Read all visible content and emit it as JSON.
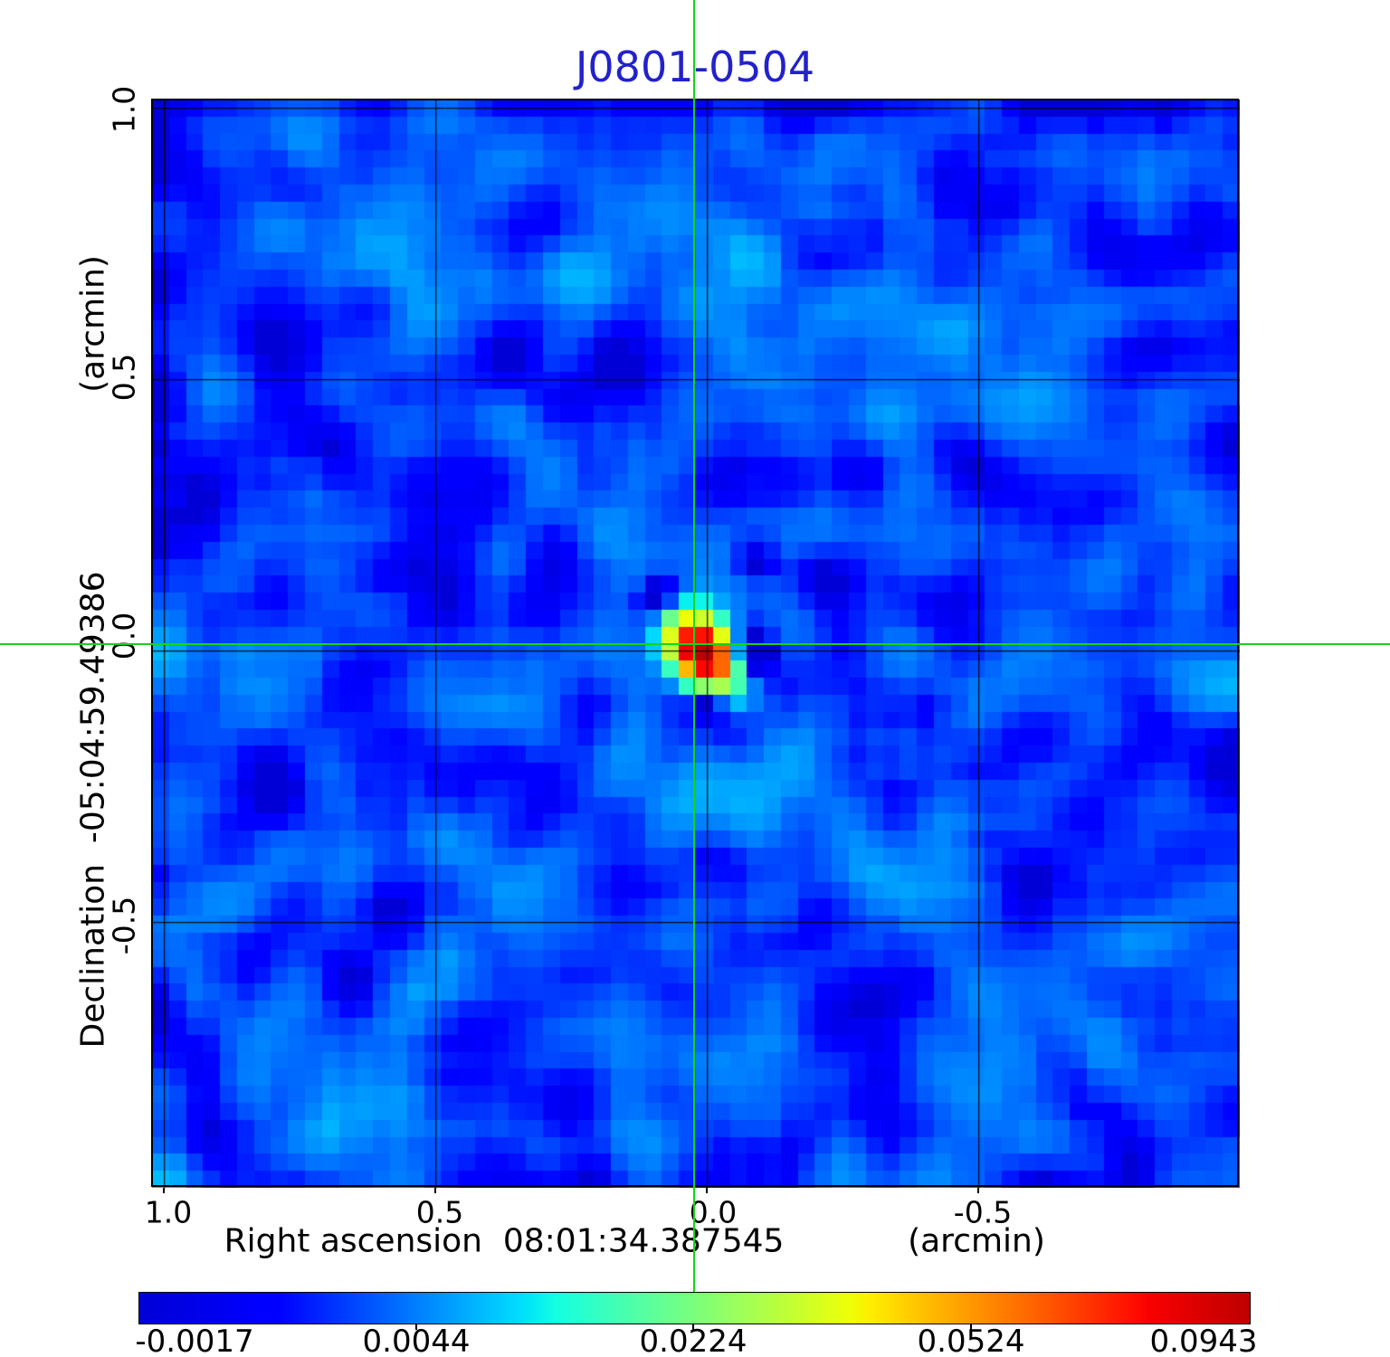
{
  "title": "J0801-0504",
  "title_color": "#2222cc",
  "crosshair_color": "#18d318",
  "axes": {
    "y_unit": "(arcmin)",
    "y_title": "Declination  -05:04:59.49386",
    "x_title": "Right ascension  08:01:34.387545",
    "x_unit": "(arcmin)",
    "y_ticks": [
      "1.0",
      "0.5",
      "0.0",
      "-0.5"
    ],
    "x_ticks": [
      "1.0",
      "0.5",
      "0.0",
      "-0.5"
    ]
  },
  "colorbar": {
    "tick_labels": [
      "-0.0017",
      "0.0044",
      "0.0224",
      "0.0524",
      "0.0943"
    ]
  },
  "chart_data": {
    "type": "heatmap",
    "title": "J0801-0504",
    "xlabel": "Right ascension 08:01:34.387545 (arcmin)",
    "ylabel": "Declination -05:04:59.49386 (arcmin)",
    "x_tick_values_arcmin": [
      1.0,
      0.5,
      0.0,
      -0.5
    ],
    "y_tick_values_arcmin": [
      1.0,
      0.5,
      0.0,
      -0.5
    ],
    "x_range_arcmin": [
      1.03,
      -0.97
    ],
    "y_range_arcmin": [
      1.0,
      -1.0
    ],
    "grid": true,
    "colormap": "jet",
    "color_scale": "sqrt",
    "value_min": -0.0017,
    "value_max": 0.0943,
    "colorbar_tick_values": [
      -0.0017,
      0.0044,
      0.0224,
      0.0524,
      0.0943
    ],
    "source": {
      "name": "J0801-0504",
      "ra": "08:01:34.387545",
      "dec": "-05:04:59.49386",
      "offset_arcmin": [
        0.0,
        0.0
      ],
      "peak_value": 0.0943
    },
    "render": {
      "grid_cells": 64,
      "seed": 1337,
      "noise_mean": 0.0022,
      "noise_scale": 0.024,
      "edge_darken": 0.0012,
      "center_cell": [
        31.85,
        32.0
      ],
      "streak_dir": [
        0.62,
        0.785
      ],
      "streak1_amp": 0.0026,
      "streak1_width": 1.5,
      "streak2_amp": 0.0011,
      "streak2_width": 1.8,
      "left_band_amp": 0.0022,
      "vband_amp": 0.0015,
      "source_peak": 0.0935,
      "source_sigma_major": 1.55,
      "source_sigma_minor": 1.03,
      "neg_spots": [
        [
          2.6,
          0.1,
          -0.016,
          0.9
        ],
        [
          0.5,
          2.6,
          -0.014,
          0.7
        ],
        [
          -2.5,
          -3.1,
          -0.012,
          0.9
        ],
        [
          3.1,
          -5.4,
          -0.008,
          1.0
        ]
      ]
    }
  }
}
